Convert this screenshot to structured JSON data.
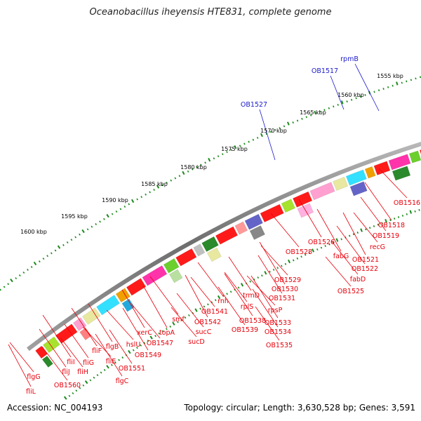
{
  "title": "Oceanobacillus iheyensis HTE831, complete genome",
  "footer": {
    "accession_label": "Accession:",
    "accession": "NC_004193",
    "topology_label": "Topology:",
    "topology": "circular",
    "length_label": "Length:",
    "length": "3,630,528 bp",
    "genes_label": "Genes:",
    "genes": "3,591"
  },
  "kbp_scale": [
    "1555 kbp",
    "1560 kbp",
    "1565 kbp",
    "1570 kbp",
    "1575 kbp",
    "1580 kbp",
    "1585 kbp",
    "1590 kbp",
    "1595 kbp",
    "1600 kbp"
  ],
  "top_labels": [
    "rpmB",
    "OB1517",
    "OB1527"
  ],
  "bottom_labels": [
    "OB1516",
    "OB1518",
    "OB1519",
    "recG",
    "OB1521",
    "OB1522",
    "fabD",
    "OB1525",
    "fabG",
    "OB1526",
    "OB1528",
    "OB1529",
    "OB1530",
    "OB1531",
    "trmD",
    "rpsP",
    "OB1533",
    "OB1534",
    "OB1535",
    "rplS",
    "OB1538",
    "OB1539",
    "rnh",
    "OB1541",
    "OB1542",
    "smf",
    "sucC",
    "sucD",
    "topA",
    "xerC",
    "OB1547",
    "hslU",
    "OB1549",
    "flgB",
    "OB1551",
    "fliE",
    "flgC",
    "fliF",
    "fliG",
    "fliH",
    "fliI",
    "fliJ",
    "OB1560",
    "flgG",
    "fliL"
  ],
  "colors": {
    "label_red": "#e8000b",
    "label_blue": "#1a1acc",
    "tick_green": "#1b8a1b",
    "backbone": "#888888"
  }
}
